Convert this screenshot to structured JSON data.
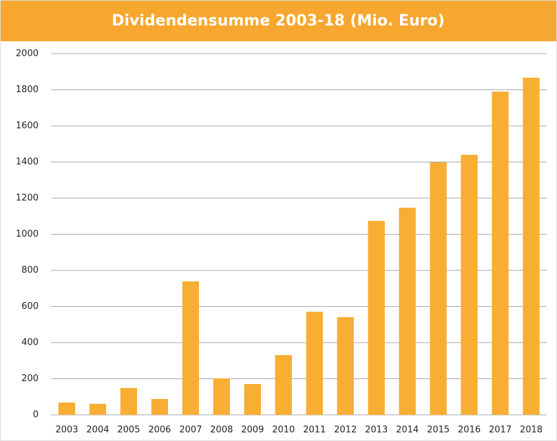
{
  "chart_data": {
    "type": "bar",
    "title": "Dividendensumme 2003-18 (Mio. Euro)",
    "categories": [
      "2003",
      "2004",
      "2005",
      "2006",
      "2007",
      "2008",
      "2009",
      "2010",
      "2011",
      "2012",
      "2013",
      "2014",
      "2015",
      "2016",
      "2017",
      "2018"
    ],
    "values": [
      68,
      61,
      149,
      88,
      739,
      202,
      171,
      331,
      571,
      541,
      1074,
      1147,
      1398,
      1440,
      1790,
      1867
    ],
    "color": "#f8ad33",
    "ylim": [
      0,
      2000
    ],
    "yticks": [
      0,
      200,
      400,
      600,
      800,
      1000,
      1200,
      1400,
      1600,
      1800,
      2000
    ],
    "grid": true
  }
}
